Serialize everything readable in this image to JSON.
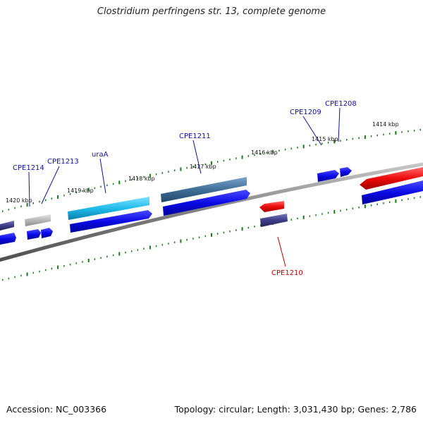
{
  "title": "Clostridium perfringens str. 13, complete genome",
  "footer": {
    "accession": "Accession: NC_003366",
    "summary": "Topology: circular; Length: 3,031,430 bp; Genes: 2,786"
  },
  "colors": {
    "backbone": "#808080",
    "tick": "#1a7a1a",
    "plus_label": "#1010a0",
    "minus_label": "#c00000",
    "gene_blue": "#0a0ae6",
    "gene_cyan": "#20bcea",
    "gene_steel": "#3f6e98",
    "gene_red": "#ee0a0a",
    "gene_grey": "#b8b8b8",
    "gene_navy": "#3d3d88"
  },
  "scale_labels": [
    "1420 kbp",
    "1419 kbp",
    "1418 kbp",
    "1417 kbp",
    "1416 kbp",
    "1415 kbp",
    "1414 kbp"
  ],
  "gene_labels": [
    {
      "text": "CPE1214",
      "strand": "plus"
    },
    {
      "text": "CPE1213",
      "strand": "plus"
    },
    {
      "text": "uraA",
      "strand": "plus"
    },
    {
      "text": "CPE1211",
      "strand": "plus"
    },
    {
      "text": "CPE1209",
      "strand": "plus"
    },
    {
      "text": "CPE1208",
      "strand": "plus"
    },
    {
      "text": "CPE1210",
      "strand": "minus"
    }
  ]
}
